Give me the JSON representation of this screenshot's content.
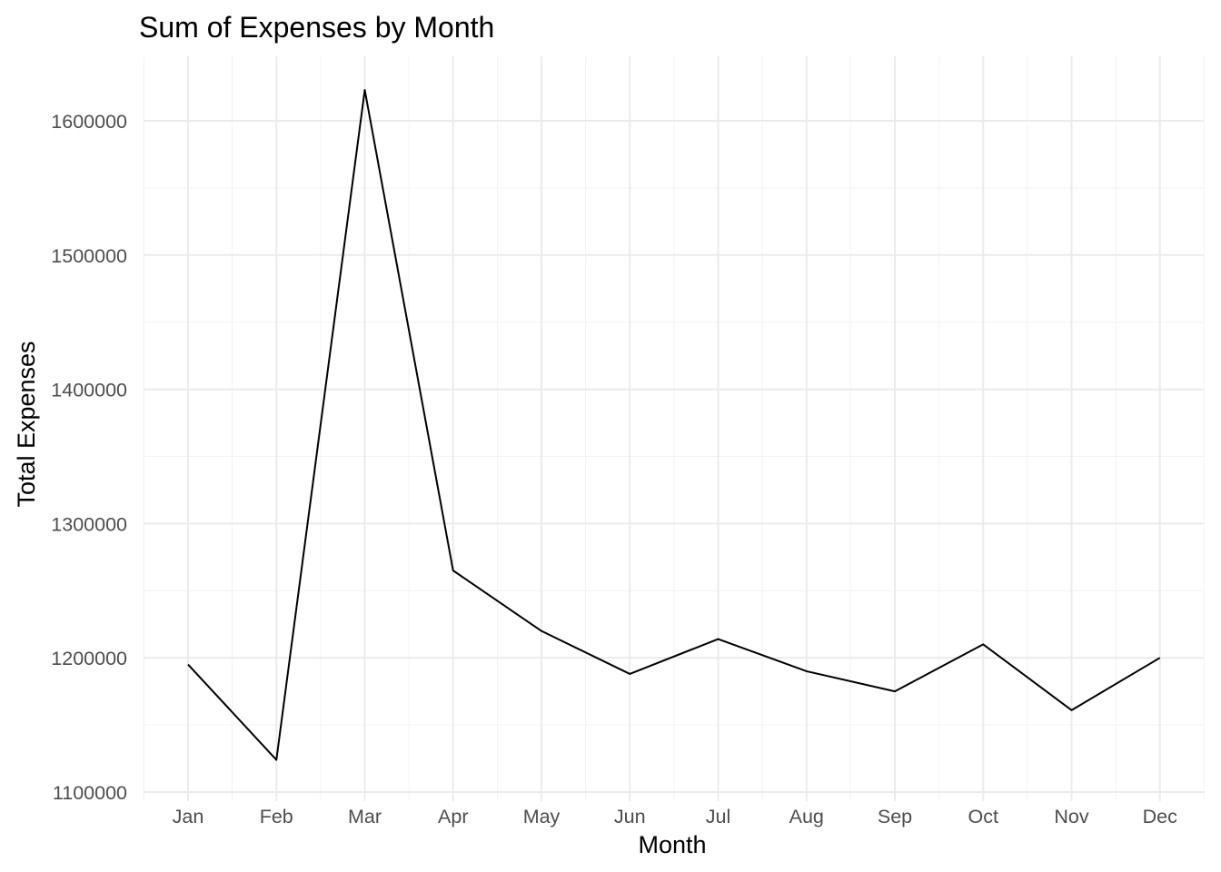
{
  "chart_data": {
    "type": "line",
    "title": "Sum of Expenses by Month",
    "xlabel": "Month",
    "ylabel": "Total Expenses",
    "categories": [
      "Jan",
      "Feb",
      "Mar",
      "Apr",
      "May",
      "Jun",
      "Jul",
      "Aug",
      "Sep",
      "Oct",
      "Nov",
      "Dec"
    ],
    "values": [
      1195000,
      1124000,
      1623000,
      1265000,
      1220000,
      1188000,
      1214000,
      1190000,
      1175000,
      1210000,
      1161000,
      1200000
    ],
    "ylim": [
      1100000,
      1650000
    ],
    "yticks": [
      "1100000",
      "1200000",
      "1300000",
      "1400000",
      "1500000",
      "1600000"
    ],
    "grid": true,
    "line_color": "#000000"
  }
}
